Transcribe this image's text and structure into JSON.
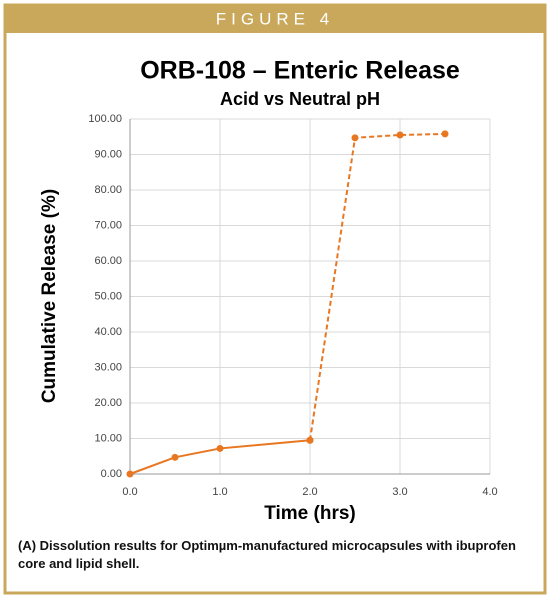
{
  "figure_label": "FIGURE 4",
  "caption": "(A) Dissolution results for Optimµm-manufactured microcapsules with ibuprofen core and lipid shell.",
  "chart_data": {
    "type": "line",
    "title": "ORB-108 – Enteric Release",
    "subtitle": "Acid vs Neutral pH",
    "x_label": "Time (hrs)",
    "y_label": "Cumulative Release (%)",
    "series": [
      {
        "color": "#e87722",
        "line_style": "solid",
        "x": [
          0,
          0.5,
          1,
          2
        ],
        "values": [
          0,
          4.7,
          7.2,
          9.5
        ]
      },
      {
        "color": "#e87722",
        "line_style": "dashed",
        "x": [
          2,
          2.5,
          3,
          3.5
        ],
        "values": [
          9.5,
          94.7,
          95.5,
          95.8
        ]
      }
    ],
    "xlim": [
      0,
      4
    ],
    "xticks": [
      {
        "value": 0,
        "label": "0.0"
      },
      {
        "value": 1,
        "label": "1.0"
      },
      {
        "value": 2,
        "label": "2.0"
      },
      {
        "value": 3,
        "label": "3.0"
      },
      {
        "value": 4,
        "label": "4.0"
      }
    ],
    "ylim": [
      0,
      100
    ],
    "yticks": [
      {
        "value": 0,
        "label": "0.00"
      },
      {
        "value": 10,
        "label": "10.00"
      },
      {
        "value": 20,
        "label": "20.00"
      },
      {
        "value": 30,
        "label": "30.00"
      },
      {
        "value": 40,
        "label": "40.00"
      },
      {
        "value": 50,
        "label": "50.00"
      },
      {
        "value": 60,
        "label": "60.00"
      },
      {
        "value": 70,
        "label": "70.00"
      },
      {
        "value": 80,
        "label": "80.00"
      },
      {
        "value": 90,
        "label": "90.00"
      },
      {
        "value": 100,
        "label": "100.00"
      }
    ],
    "grid": true
  }
}
